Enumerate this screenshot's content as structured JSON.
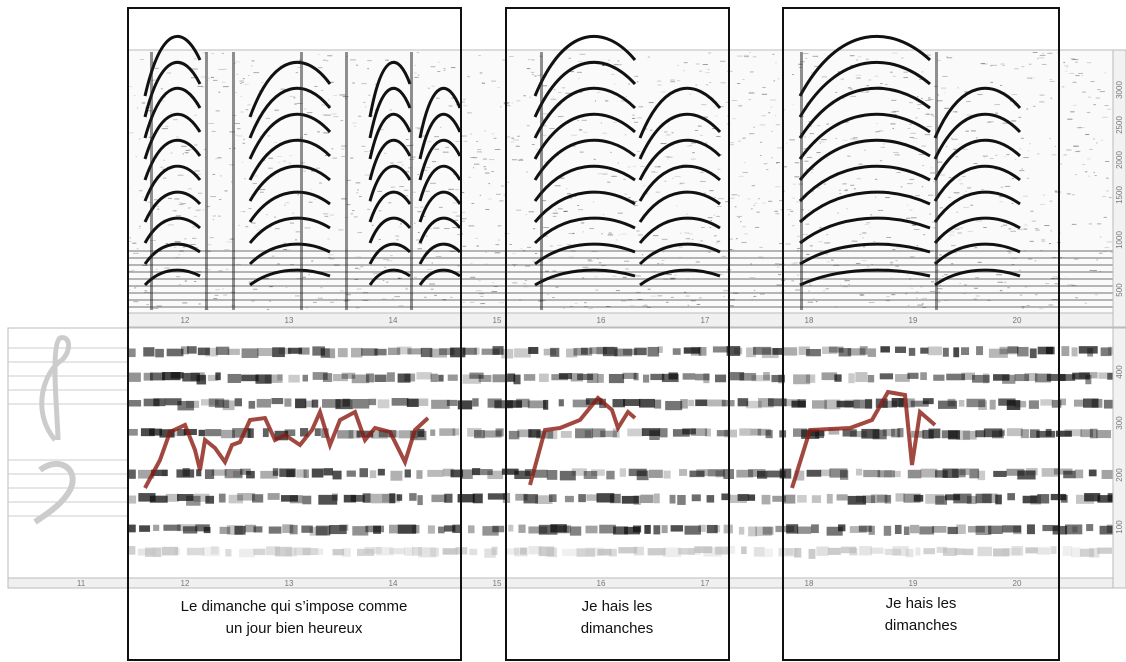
{
  "top_panel": {
    "time_ticks": [
      "12",
      "13",
      "14",
      "15",
      "16",
      "17",
      "18",
      "19",
      "20"
    ],
    "freq_ticks": [
      "500",
      "1000",
      "1500",
      "2000",
      "2500",
      "3000"
    ]
  },
  "bottom_panel": {
    "time_ticks": [
      "11",
      "12",
      "13",
      "14",
      "15",
      "16",
      "17",
      "18",
      "19",
      "20"
    ],
    "freq_ticks": [
      "100",
      "200",
      "300",
      "400"
    ]
  },
  "captions": [
    {
      "lines": [
        "Le dimanche qui s’impose comme",
        "un jour bien heureux"
      ]
    },
    {
      "lines": [
        "Je hais les",
        "dimanches"
      ]
    },
    {
      "lines": [
        "Je hais les",
        "dimanches"
      ]
    }
  ]
}
